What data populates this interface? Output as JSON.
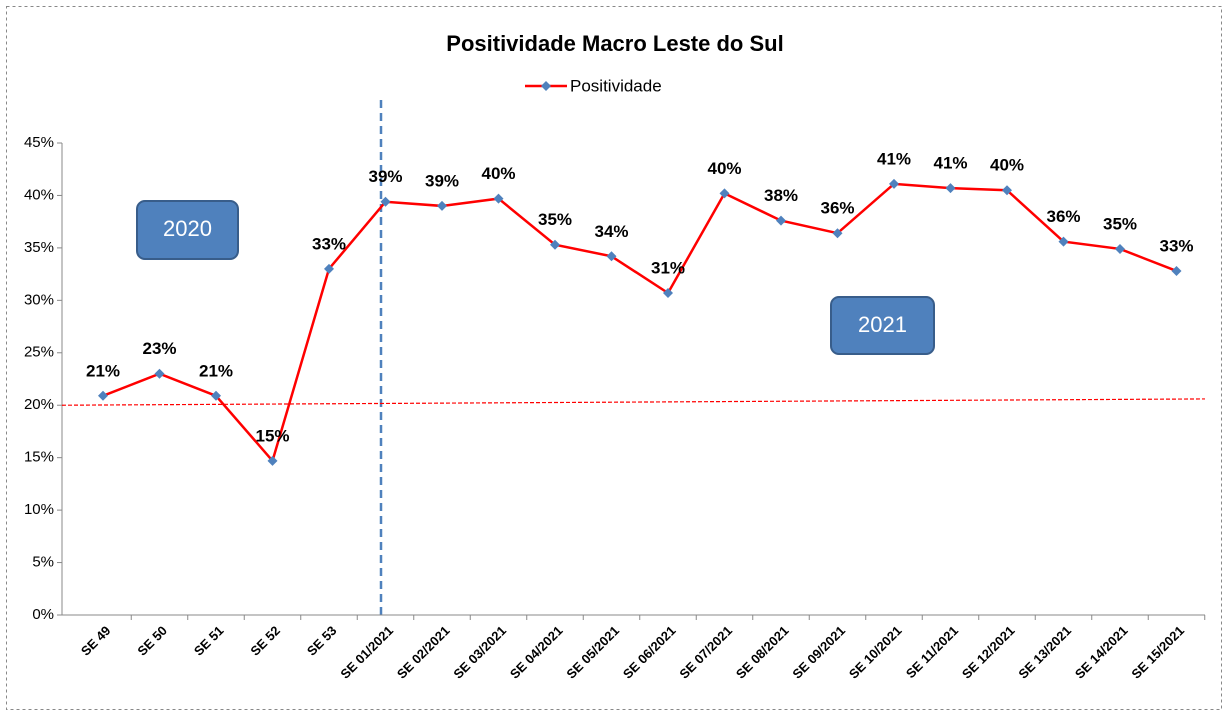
{
  "chart_data": {
    "type": "line",
    "title": "Positividade Macro Leste do Sul",
    "categories": [
      "SE 49",
      "SE 50",
      "SE 51",
      "SE 52",
      "SE 53",
      "SE 01/2021",
      "SE 02/2021",
      "SE 03/2021",
      "SE 04/2021",
      "SE 05/2021",
      "SE 06/2021",
      "SE 07/2021",
      "SE 08/2021",
      "SE 09/2021",
      "SE 10/2021",
      "SE 11/2021",
      "SE 12/2021",
      "SE 13/2021",
      "SE 14/2021",
      "SE 15/2021"
    ],
    "series": [
      {
        "name": "Positividade",
        "color": "#ff0000",
        "marker_color": "#4f81bd",
        "values": [
          20.9,
          23.0,
          20.9,
          14.7,
          33.0,
          39.4,
          39.0,
          39.7,
          35.3,
          34.2,
          30.7,
          40.2,
          37.6,
          36.4,
          41.1,
          40.7,
          40.5,
          35.6,
          34.9,
          32.8
        ],
        "value_labels": [
          "21%",
          "23%",
          "21%",
          "15%",
          "33%",
          "39%",
          "39%",
          "40%",
          "35%",
          "34%",
          "31%",
          "40%",
          "38%",
          "36%",
          "41%",
          "41%",
          "40%",
          "36%",
          "35%",
          "33%"
        ]
      }
    ],
    "ylim": [
      0,
      45
    ],
    "yticks": [
      {
        "value": 0,
        "label": "0%"
      },
      {
        "value": 5,
        "label": "5%"
      },
      {
        "value": 10,
        "label": "10%"
      },
      {
        "value": 15,
        "label": "15%"
      },
      {
        "value": 20,
        "label": "20%"
      },
      {
        "value": 25,
        "label": "25%"
      },
      {
        "value": 30,
        "label": "30%"
      },
      {
        "value": 35,
        "label": "35%"
      },
      {
        "value": 40,
        "label": "40%"
      },
      {
        "value": 45,
        "label": "45%"
      }
    ],
    "reference_line": {
      "start": 20,
      "end": 20.6,
      "color": "#ff0000"
    },
    "annotations": [
      "2020",
      "2021"
    ],
    "legend": "top"
  }
}
